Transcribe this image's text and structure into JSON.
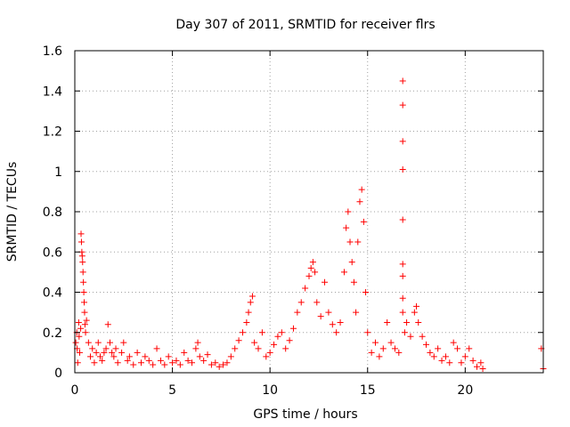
{
  "chart_data": {
    "type": "scatter",
    "title": "Day 307 of 2011, SRMTID for receiver flrs",
    "xlabel": "GPS time / hours",
    "ylabel": "SRMTID / TECUs",
    "xlim": [
      0,
      24
    ],
    "ylim": [
      0,
      1.6
    ],
    "xticks": [
      0,
      5,
      10,
      15,
      20
    ],
    "xtick_labels": [
      "0",
      "5",
      "10",
      "15",
      "20"
    ],
    "yticks": [
      0,
      0.2,
      0.4,
      0.6,
      0.8,
      1,
      1.2,
      1.4,
      1.6
    ],
    "ytick_labels": [
      "0",
      "0.2",
      "0.4",
      "0.6",
      "0.8",
      "1",
      "1.2",
      "1.4",
      "1.6"
    ],
    "grid": true,
    "marker": "plus",
    "color": "#ff0000",
    "series": [
      {
        "name": "SRMTID",
        "points": [
          [
            0.05,
            0.15
          ],
          [
            0.1,
            0.2
          ],
          [
            0.12,
            0.12
          ],
          [
            0.15,
            0.05
          ],
          [
            0.2,
            0.25
          ],
          [
            0.22,
            0.18
          ],
          [
            0.25,
            0.1
          ],
          [
            0.3,
            0.22
          ],
          [
            0.32,
            0.69
          ],
          [
            0.34,
            0.65
          ],
          [
            0.36,
            0.6
          ],
          [
            0.38,
            0.58
          ],
          [
            0.4,
            0.55
          ],
          [
            0.42,
            0.5
          ],
          [
            0.44,
            0.45
          ],
          [
            0.46,
            0.4
          ],
          [
            0.48,
            0.35
          ],
          [
            0.5,
            0.3
          ],
          [
            0.52,
            0.24
          ],
          [
            0.55,
            0.2
          ],
          [
            0.6,
            0.26
          ],
          [
            0.7,
            0.15
          ],
          [
            0.8,
            0.08
          ],
          [
            0.9,
            0.12
          ],
          [
            1.0,
            0.05
          ],
          [
            1.1,
            0.1
          ],
          [
            1.2,
            0.15
          ],
          [
            1.3,
            0.08
          ],
          [
            1.4,
            0.06
          ],
          [
            1.5,
            0.1
          ],
          [
            1.6,
            0.12
          ],
          [
            1.7,
            0.24
          ],
          [
            1.8,
            0.15
          ],
          [
            1.9,
            0.1
          ],
          [
            2.0,
            0.08
          ],
          [
            2.1,
            0.12
          ],
          [
            2.2,
            0.05
          ],
          [
            2.4,
            0.1
          ],
          [
            2.5,
            0.15
          ],
          [
            2.7,
            0.06
          ],
          [
            2.8,
            0.08
          ],
          [
            3.0,
            0.04
          ],
          [
            3.2,
            0.1
          ],
          [
            3.4,
            0.05
          ],
          [
            3.6,
            0.08
          ],
          [
            3.8,
            0.06
          ],
          [
            4.0,
            0.04
          ],
          [
            4.2,
            0.12
          ],
          [
            4.4,
            0.06
          ],
          [
            4.6,
            0.04
          ],
          [
            4.8,
            0.08
          ],
          [
            5.0,
            0.05
          ],
          [
            5.2,
            0.06
          ],
          [
            5.4,
            0.04
          ],
          [
            5.6,
            0.1
          ],
          [
            5.8,
            0.06
          ],
          [
            6.0,
            0.05
          ],
          [
            6.2,
            0.12
          ],
          [
            6.3,
            0.15
          ],
          [
            6.4,
            0.08
          ],
          [
            6.6,
            0.06
          ],
          [
            6.8,
            0.09
          ],
          [
            7.0,
            0.04
          ],
          [
            7.2,
            0.05
          ],
          [
            7.4,
            0.03
          ],
          [
            7.6,
            0.04
          ],
          [
            7.8,
            0.05
          ],
          [
            8.0,
            0.08
          ],
          [
            8.2,
            0.12
          ],
          [
            8.4,
            0.16
          ],
          [
            8.6,
            0.2
          ],
          [
            8.8,
            0.25
          ],
          [
            8.9,
            0.3
          ],
          [
            9.0,
            0.35
          ],
          [
            9.1,
            0.38
          ],
          [
            9.2,
            0.15
          ],
          [
            9.4,
            0.12
          ],
          [
            9.6,
            0.2
          ],
          [
            9.8,
            0.08
          ],
          [
            10.0,
            0.1
          ],
          [
            10.2,
            0.14
          ],
          [
            10.4,
            0.18
          ],
          [
            10.6,
            0.2
          ],
          [
            10.8,
            0.12
          ],
          [
            11.0,
            0.16
          ],
          [
            11.2,
            0.22
          ],
          [
            11.4,
            0.3
          ],
          [
            11.6,
            0.35
          ],
          [
            11.8,
            0.42
          ],
          [
            12.0,
            0.48
          ],
          [
            12.1,
            0.52
          ],
          [
            12.2,
            0.55
          ],
          [
            12.3,
            0.5
          ],
          [
            12.4,
            0.35
          ],
          [
            12.6,
            0.28
          ],
          [
            12.8,
            0.45
          ],
          [
            13.0,
            0.3
          ],
          [
            13.2,
            0.24
          ],
          [
            13.4,
            0.2
          ],
          [
            13.6,
            0.25
          ],
          [
            13.8,
            0.5
          ],
          [
            13.9,
            0.72
          ],
          [
            14.0,
            0.8
          ],
          [
            14.1,
            0.65
          ],
          [
            14.2,
            0.55
          ],
          [
            14.3,
            0.45
          ],
          [
            14.4,
            0.3
          ],
          [
            14.5,
            0.65
          ],
          [
            14.6,
            0.85
          ],
          [
            14.7,
            0.91
          ],
          [
            14.8,
            0.75
          ],
          [
            14.9,
            0.4
          ],
          [
            15.0,
            0.2
          ],
          [
            15.2,
            0.1
          ],
          [
            15.4,
            0.15
          ],
          [
            15.6,
            0.08
          ],
          [
            15.8,
            0.12
          ],
          [
            16.0,
            0.25
          ],
          [
            16.2,
            0.15
          ],
          [
            16.4,
            0.12
          ],
          [
            16.6,
            0.1
          ],
          [
            16.8,
            1.45
          ],
          [
            16.8,
            1.33
          ],
          [
            16.8,
            1.15
          ],
          [
            16.8,
            1.01
          ],
          [
            16.8,
            0.76
          ],
          [
            16.8,
            0.54
          ],
          [
            16.8,
            0.48
          ],
          [
            16.8,
            0.37
          ],
          [
            16.8,
            0.3
          ],
          [
            16.9,
            0.2
          ],
          [
            17.0,
            0.25
          ],
          [
            17.2,
            0.18
          ],
          [
            17.4,
            0.3
          ],
          [
            17.5,
            0.33
          ],
          [
            17.6,
            0.25
          ],
          [
            17.8,
            0.18
          ],
          [
            18.0,
            0.14
          ],
          [
            18.2,
            0.1
          ],
          [
            18.4,
            0.08
          ],
          [
            18.6,
            0.12
          ],
          [
            18.8,
            0.06
          ],
          [
            19.0,
            0.08
          ],
          [
            19.2,
            0.05
          ],
          [
            19.4,
            0.15
          ],
          [
            19.6,
            0.12
          ],
          [
            19.8,
            0.05
          ],
          [
            20.0,
            0.08
          ],
          [
            20.2,
            0.12
          ],
          [
            20.4,
            0.06
          ],
          [
            20.6,
            0.03
          ],
          [
            20.8,
            0.05
          ],
          [
            20.9,
            0.02
          ],
          [
            23.9,
            0.12
          ],
          [
            24.0,
            0.02
          ]
        ]
      }
    ]
  }
}
